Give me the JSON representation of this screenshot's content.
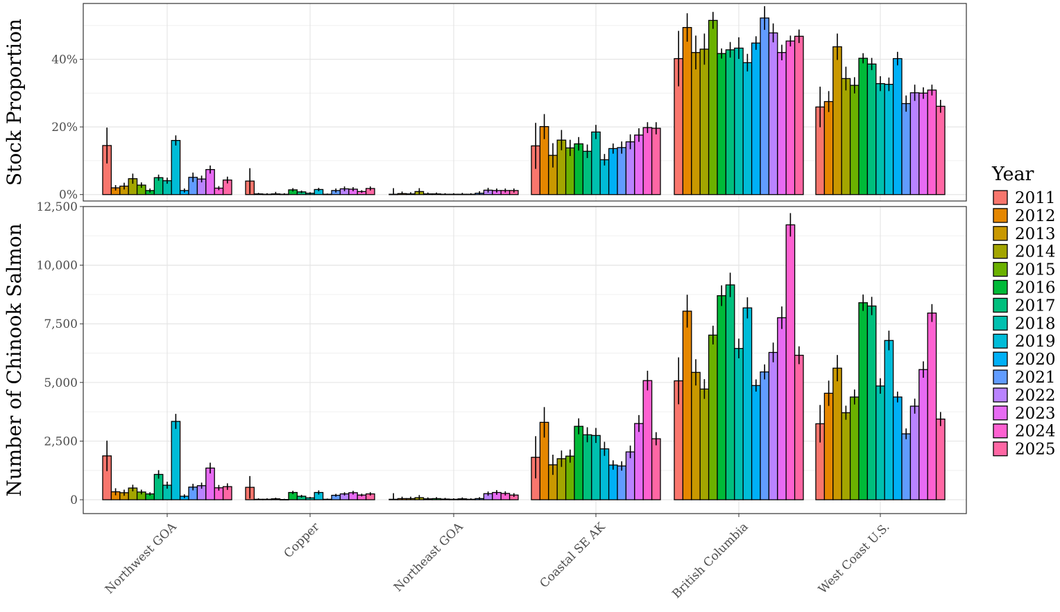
{
  "chart_data": {
    "type": "bar",
    "categories": [
      "Northwest GOA",
      "Copper",
      "Northeast GOA",
      "Coastal SE AK",
      "British Columbia",
      "West Coast U.S."
    ],
    "legend": {
      "title": "Year",
      "placement": "right",
      "entries": [
        "2011",
        "2012",
        "2013",
        "2014",
        "2015",
        "2016",
        "2017",
        "2018",
        "2019",
        "2020",
        "2021",
        "2022",
        "2023",
        "2024",
        "2025"
      ]
    },
    "colors": [
      "#F8766D",
      "#E58700",
      "#C99800",
      "#A3A500",
      "#6BB100",
      "#00BA38",
      "#00BF7D",
      "#00C0AF",
      "#00BCD8",
      "#00B0F6",
      "#619CFF",
      "#B983FF",
      "#E76BF3",
      "#FD61D1",
      "#FF67A4"
    ],
    "grid": true,
    "panels": [
      {
        "ylabel": "Stock Proportion",
        "ylim": [
          -1.9,
          56.5
        ],
        "yticks": [
          0,
          20,
          40
        ],
        "ytick_labels": [
          "0%",
          "20%",
          "40%"
        ],
        "values": [
          [
            14.5,
            2.0,
            2.5,
            4.7,
            2.8,
            1.2,
            5.0,
            4.1,
            16.0,
            1.2,
            5.1,
            4.6,
            7.4,
            1.9,
            4.3
          ],
          [
            4.0,
            0.2,
            0.1,
            0.2,
            0.1,
            1.4,
            0.8,
            0.4,
            1.5,
            0.1,
            1.2,
            1.7,
            1.6,
            0.9,
            1.8
          ],
          [
            0.1,
            0.3,
            0.2,
            0.9,
            0.2,
            0.2,
            0.1,
            0.1,
            0.1,
            0.1,
            0.4,
            1.3,
            1.2,
            1.2,
            1.2
          ],
          [
            14.4,
            20.1,
            11.6,
            16.1,
            13.8,
            15.0,
            12.8,
            18.5,
            10.3,
            13.6,
            13.9,
            15.6,
            17.6,
            19.8,
            19.6
          ],
          [
            40.2,
            49.4,
            42.0,
            43.0,
            51.5,
            41.7,
            42.8,
            43.3,
            39.0,
            44.8,
            52.2,
            47.8,
            42.0,
            45.4,
            46.8
          ],
          [
            25.9,
            27.5,
            43.7,
            34.3,
            32.3,
            40.3,
            38.6,
            32.8,
            32.6,
            40.2,
            26.9,
            30.1,
            30.0,
            30.9,
            26.1
          ]
        ],
        "errors": [
          [
            5.3,
            0.8,
            1.0,
            1.5,
            0.8,
            0.6,
            0.9,
            0.9,
            1.5,
            0.6,
            1.4,
            1.0,
            1.2,
            0.6,
            1.0
          ],
          [
            3.8,
            0.3,
            0.3,
            0.6,
            0.3,
            0.5,
            0.4,
            0.3,
            0.5,
            0.2,
            0.6,
            0.7,
            0.6,
            0.4,
            0.6
          ],
          [
            1.8,
            0.6,
            0.5,
            1.0,
            0.4,
            0.4,
            0.3,
            0.3,
            0.4,
            0.3,
            0.6,
            0.7,
            0.6,
            0.6,
            0.6
          ],
          [
            6.8,
            3.7,
            3.6,
            3.0,
            2.4,
            2.0,
            2.0,
            2.1,
            1.7,
            1.5,
            1.8,
            2.2,
            2.0,
            1.6,
            1.8
          ],
          [
            8.2,
            4.2,
            5.0,
            4.6,
            2.5,
            1.5,
            2.3,
            3.2,
            2.6,
            2.0,
            3.5,
            2.8,
            2.3,
            1.6,
            2.0
          ],
          [
            6.0,
            3.1,
            3.9,
            3.5,
            2.4,
            1.5,
            1.8,
            2.2,
            2.0,
            2.0,
            2.4,
            2.4,
            1.7,
            1.6,
            1.9
          ]
        ]
      },
      {
        "ylabel": "Number of Chinook Salmon",
        "ylim": [
          -590,
          12500
        ],
        "yticks": [
          0,
          2500,
          5000,
          7500,
          10000,
          12500
        ],
        "ytick_labels": [
          "0",
          "2,500",
          "5,000",
          "7,500",
          "10,000",
          "12,500"
        ],
        "values": [
          [
            1870,
            340,
            300,
            500,
            330,
            250,
            1080,
            620,
            3340,
            150,
            540,
            600,
            1350,
            510,
            560
          ],
          [
            530,
            20,
            20,
            40,
            10,
            310,
            150,
            80,
            310,
            20,
            190,
            250,
            300,
            200,
            250
          ],
          [
            20,
            50,
            50,
            90,
            40,
            50,
            30,
            20,
            40,
            20,
            50,
            260,
            310,
            270,
            200
          ],
          [
            1810,
            3300,
            1490,
            1750,
            1860,
            3130,
            2770,
            2740,
            2170,
            1480,
            1440,
            2040,
            3250,
            5080,
            2600
          ],
          [
            5070,
            8040,
            5430,
            4720,
            7020,
            8700,
            9160,
            6450,
            8180,
            4870,
            5450,
            6280,
            7760,
            11720,
            6160
          ],
          [
            3240,
            4540,
            5610,
            3710,
            4380,
            8400,
            8260,
            4850,
            6790,
            4380,
            2810,
            3990,
            5550,
            7960,
            3440
          ]
        ],
        "errors": [
          [
            650,
            150,
            130,
            140,
            100,
            70,
            180,
            150,
            320,
            80,
            140,
            130,
            230,
            120,
            140
          ],
          [
            480,
            40,
            40,
            50,
            30,
            70,
            60,
            40,
            90,
            30,
            60,
            70,
            80,
            60,
            70
          ],
          [
            260,
            80,
            80,
            110,
            60,
            60,
            50,
            40,
            60,
            40,
            60,
            90,
            100,
            90,
            80
          ],
          [
            900,
            650,
            430,
            350,
            280,
            340,
            320,
            320,
            300,
            200,
            200,
            270,
            360,
            420,
            280
          ],
          [
            1000,
            700,
            560,
            420,
            400,
            440,
            520,
            420,
            450,
            260,
            320,
            420,
            480,
            500,
            380
          ],
          [
            800,
            540,
            560,
            300,
            320,
            350,
            390,
            330,
            420,
            230,
            230,
            320,
            350,
            380,
            300
          ]
        ]
      }
    ]
  }
}
